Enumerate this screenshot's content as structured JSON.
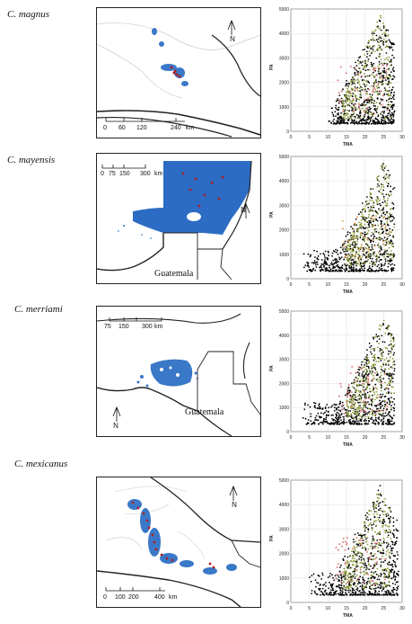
{
  "panels": [
    {
      "species": "C. magnus",
      "scale": {
        "ticks": [
          "0",
          "60",
          "120",
          "240"
        ],
        "unit": "km"
      },
      "country_label": "",
      "north": "N",
      "map_colors": {
        "range": "#3a78c8",
        "points": "#b02020"
      },
      "chart_data": {
        "type": "scatter",
        "xlabel": "TMA",
        "ylabel": "PA",
        "xlim": [
          0,
          30
        ],
        "ylim": [
          0,
          5000
        ],
        "xticks": [
          "0",
          "5",
          "10",
          "15",
          "20",
          "25",
          "30"
        ],
        "yticks": [
          "0",
          "1000",
          "2000",
          "3000",
          "4000",
          "5000"
        ],
        "grid": true,
        "series_colors": [
          "#000000",
          "#8c9a3a",
          "#e08080"
        ],
        "cloud": {
          "x_range": [
            10,
            28
          ],
          "y_range": [
            300,
            4800
          ],
          "peak_x": 24
        }
      }
    },
    {
      "species": "C. mayensis",
      "scale": {
        "ticks": [
          "0",
          "75",
          "150",
          "300"
        ],
        "unit": "km"
      },
      "country_label": "Guatemala",
      "north": "N",
      "map_colors": {
        "range": "#2c6cc4",
        "points": "#b02020"
      },
      "chart_data": {
        "type": "scatter",
        "xlabel": "TMA",
        "ylabel": "PA",
        "xlim": [
          0,
          30
        ],
        "ylim": [
          0,
          5000
        ],
        "xticks": [
          "0",
          "5",
          "10",
          "15",
          "20",
          "25",
          "30"
        ],
        "yticks": [
          "0",
          "1000",
          "2000",
          "3000",
          "4000",
          "5000"
        ],
        "grid": true,
        "series_colors": [
          "#000000",
          "#8c9a3a",
          "#d9a060"
        ],
        "cloud": {
          "x_range": [
            3,
            28
          ],
          "y_range": [
            300,
            4800
          ],
          "peak_x": 25
        }
      }
    },
    {
      "species": "C. merriami",
      "scale": {
        "ticks": [
          "75",
          "150",
          "300"
        ],
        "unit": "km"
      },
      "country_label": "Guatemala",
      "north": "N",
      "map_colors": {
        "range": "#3a78c8",
        "points": "#b02020"
      },
      "chart_data": {
        "type": "scatter",
        "xlabel": "TMA",
        "ylabel": "PA",
        "xlim": [
          0,
          30
        ],
        "ylim": [
          0,
          5000
        ],
        "xticks": [
          "0",
          "5",
          "10",
          "15",
          "20",
          "25",
          "30"
        ],
        "yticks": [
          "0",
          "1000",
          "2000",
          "3000",
          "4000",
          "5000"
        ],
        "grid": true,
        "series_colors": [
          "#000000",
          "#8c9a3a",
          "#e08080"
        ],
        "cloud": {
          "x_range": [
            3,
            28
          ],
          "y_range": [
            300,
            4800
          ],
          "peak_x": 25
        }
      }
    },
    {
      "species": "C. mexicanus",
      "scale": {
        "ticks": [
          "0",
          "100",
          "200",
          "400"
        ],
        "unit": "km"
      },
      "country_label": "",
      "north": "N",
      "map_colors": {
        "range": "#3a78c8",
        "points": "#b02020"
      },
      "chart_data": {
        "type": "scatter",
        "xlabel": "TMA",
        "ylabel": "PA",
        "xlim": [
          0,
          30
        ],
        "ylim": [
          0,
          5000
        ],
        "xticks": [
          "0",
          "5",
          "10",
          "15",
          "20",
          "25",
          "30"
        ],
        "yticks": [
          "0",
          "1000",
          "2000",
          "3000",
          "4000",
          "5000"
        ],
        "grid": true,
        "series_colors": [
          "#000000",
          "#8c9a3a",
          "#e08080"
        ],
        "cloud": {
          "x_range": [
            5,
            29
          ],
          "y_range": [
            300,
            4800
          ],
          "peak_x": 24
        }
      }
    }
  ]
}
